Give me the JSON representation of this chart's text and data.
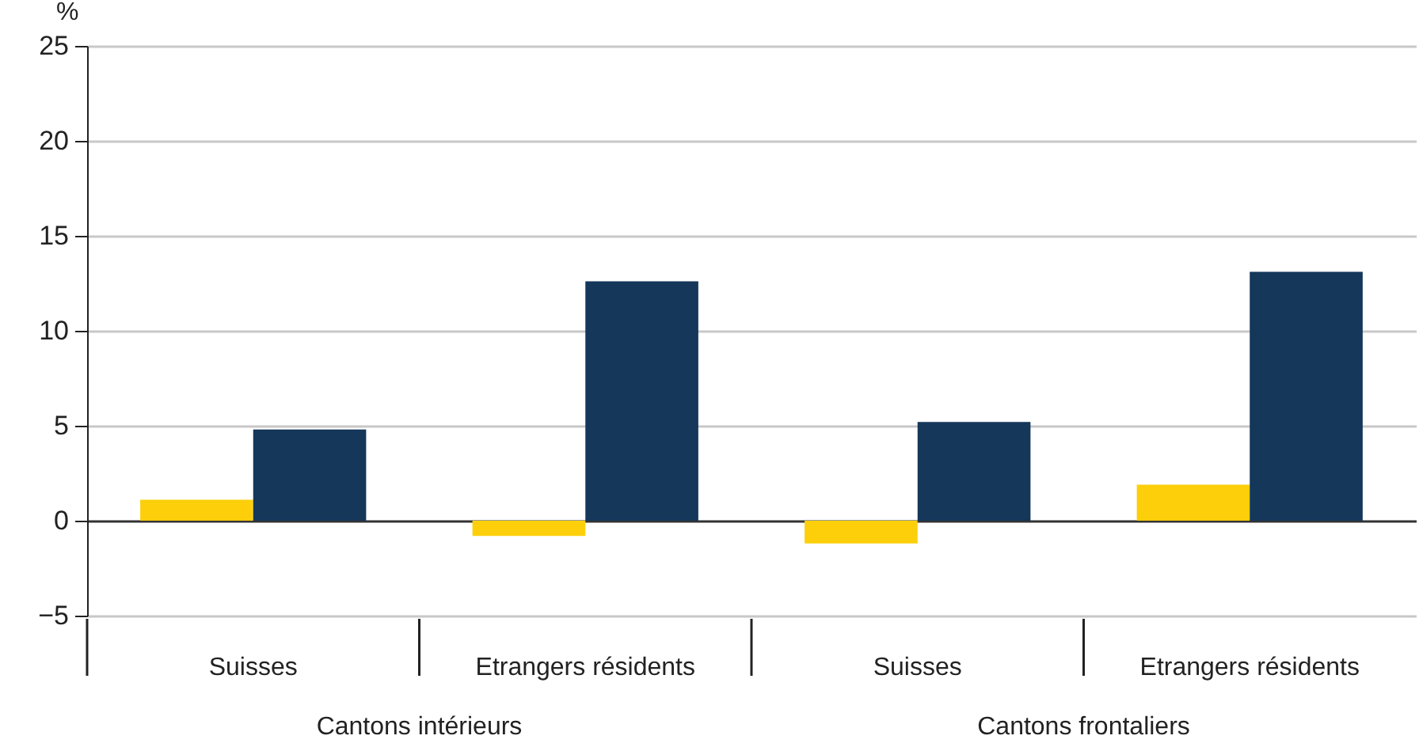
{
  "chart_data": {
    "type": "bar",
    "ylabel": "%",
    "categories": [
      "Suisses",
      "Etrangers résidents",
      "Suisses",
      "Etrangers résidents"
    ],
    "series": [
      {
        "color": "#fccf0a",
        "values": [
          1.1,
          -0.8,
          -1.2,
          1.9
        ]
      },
      {
        "color": "#14375a",
        "values": [
          4.8,
          12.6,
          5.2,
          13.1
        ]
      }
    ],
    "ylim": [
      -5,
      25
    ],
    "yticks": [
      -5,
      0,
      5,
      10,
      15,
      20,
      25
    ],
    "grid": "y",
    "legend": false,
    "annotations": [
      "Cantons intérieurs",
      "Cantons frontaliers"
    ]
  }
}
